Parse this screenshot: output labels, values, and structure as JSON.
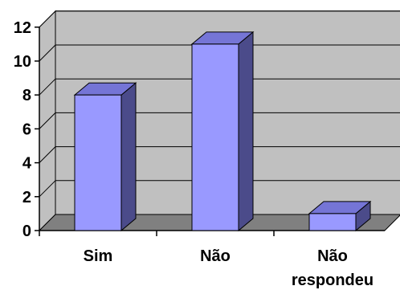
{
  "chart_data": {
    "type": "bar",
    "three_d": true,
    "categories": [
      [
        "Sim"
      ],
      [
        "Não"
      ],
      [
        "Não",
        "respondeu"
      ]
    ],
    "values": [
      8,
      11,
      1
    ],
    "ylim": [
      0,
      12
    ],
    "yticks": [
      0,
      2,
      4,
      6,
      8,
      10,
      12
    ],
    "grid": true,
    "legend": "none",
    "colors": {
      "bar_front": "#9999ff",
      "bar_side": "#4b4b8a",
      "bar_top": "#7575d6",
      "wall": "#c0c0c0",
      "floor": "#808080",
      "gridline": "#000000"
    }
  }
}
